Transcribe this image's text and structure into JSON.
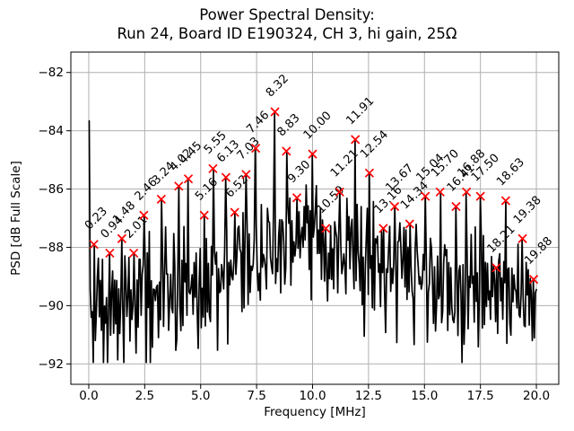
{
  "figure": {
    "title_line1": "Power Spectral Density:",
    "title_line2": "Run 24, Board ID E190324, CH 3, hi gain, 25Ω",
    "background": "#ffffff"
  },
  "chart_data": {
    "type": "line",
    "title": "Power Spectral Density:\nRun 24, Board ID E190324, CH 3, hi gain, 25Ω",
    "xlabel": "Frequency [MHz]",
    "ylabel": "PSD [dB Full Scale]",
    "xlim": [
      -0.8,
      21.0
    ],
    "ylim": [
      -92.7,
      -81.3
    ],
    "xticks": [
      0.0,
      2.5,
      5.0,
      7.5,
      10.0,
      12.5,
      15.0,
      17.5,
      20.0
    ],
    "yticks": [
      -82,
      -84,
      -86,
      -88,
      -90,
      -92
    ],
    "grid": true,
    "grid_color": "#b0b0b0",
    "line_color": "#000000",
    "marker": {
      "style": "x",
      "color": "#ff0000"
    },
    "dc_spike": {
      "freq_mhz": 0.02,
      "psd_db": -83.66
    },
    "noise_floor_db": {
      "low": -92.0,
      "typical_edges": -89.3,
      "hump_center_mhz": 9.6,
      "hump_peak_db": -87.3
    },
    "peaks": [
      {
        "label": "0.23",
        "freq_mhz": 0.23,
        "psd_db": -87.9
      },
      {
        "label": "0.94",
        "freq_mhz": 0.94,
        "psd_db": -88.2
      },
      {
        "label": "1.48",
        "freq_mhz": 1.48,
        "psd_db": -87.7
      },
      {
        "label": "2.01",
        "freq_mhz": 2.01,
        "psd_db": -88.2
      },
      {
        "label": "2.46",
        "freq_mhz": 2.46,
        "psd_db": -86.9
      },
      {
        "label": "3.24",
        "freq_mhz": 3.24,
        "psd_db": -86.35
      },
      {
        "label": "4.02",
        "freq_mhz": 4.02,
        "psd_db": -85.9
      },
      {
        "label": "4.45",
        "freq_mhz": 4.45,
        "psd_db": -85.65
      },
      {
        "label": "5.16",
        "freq_mhz": 5.16,
        "psd_db": -86.9
      },
      {
        "label": "5.55",
        "freq_mhz": 5.55,
        "psd_db": -85.3
      },
      {
        "label": "6.13",
        "freq_mhz": 6.13,
        "psd_db": -85.6
      },
      {
        "label": "6.52",
        "freq_mhz": 6.52,
        "psd_db": -86.8
      },
      {
        "label": "7.03",
        "freq_mhz": 7.03,
        "psd_db": -85.5
      },
      {
        "label": "7.46",
        "freq_mhz": 7.46,
        "psd_db": -84.6
      },
      {
        "label": "8.32",
        "freq_mhz": 8.32,
        "psd_db": -83.35
      },
      {
        "label": "8.83",
        "freq_mhz": 8.83,
        "psd_db": -84.7
      },
      {
        "label": "9.30",
        "freq_mhz": 9.3,
        "psd_db": -86.3
      },
      {
        "label": "10.00",
        "freq_mhz": 10.0,
        "psd_db": -84.8
      },
      {
        "label": "10.59",
        "freq_mhz": 10.59,
        "psd_db": -87.35
      },
      {
        "label": "11.21",
        "freq_mhz": 11.21,
        "psd_db": -86.1
      },
      {
        "label": "11.91",
        "freq_mhz": 11.91,
        "psd_db": -84.3
      },
      {
        "label": "12.54",
        "freq_mhz": 12.54,
        "psd_db": -85.45
      },
      {
        "label": "13.16",
        "freq_mhz": 13.16,
        "psd_db": -87.35
      },
      {
        "label": "13.67",
        "freq_mhz": 13.67,
        "psd_db": -86.6
      },
      {
        "label": "14.34",
        "freq_mhz": 14.34,
        "psd_db": -87.2
      },
      {
        "label": "15.04",
        "freq_mhz": 15.04,
        "psd_db": -86.25
      },
      {
        "label": "15.70",
        "freq_mhz": 15.7,
        "psd_db": -86.1
      },
      {
        "label": "16.41",
        "freq_mhz": 16.41,
        "psd_db": -86.6
      },
      {
        "label": "16.88",
        "freq_mhz": 16.88,
        "psd_db": -86.1
      },
      {
        "label": "17.50",
        "freq_mhz": 17.5,
        "psd_db": -86.25
      },
      {
        "label": "18.21",
        "freq_mhz": 18.21,
        "psd_db": -88.7
      },
      {
        "label": "18.63",
        "freq_mhz": 18.63,
        "psd_db": -86.4
      },
      {
        "label": "19.38",
        "freq_mhz": 19.38,
        "psd_db": -87.7
      },
      {
        "label": "19.88",
        "freq_mhz": 19.88,
        "psd_db": -89.1
      }
    ]
  }
}
